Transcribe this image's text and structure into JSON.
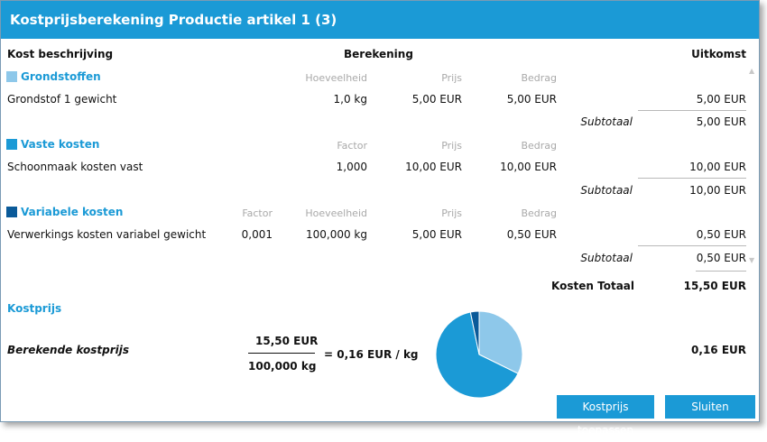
{
  "title": "Kostprijsberekening Productie artikel 1 (3)",
  "headers": {
    "description": "Kost beschrijving",
    "calculation": "Berekening",
    "outcome": "Uitkomst"
  },
  "sections": [
    {
      "name": "Grondstoffen",
      "color": "#8ec8ea",
      "columns": [
        "Hoeveelheid",
        "Prijs",
        "Bedrag"
      ],
      "row": {
        "label": "Grondstof 1 gewicht",
        "values": [
          "1,0 kg",
          "5,00 EUR",
          "5,00 EUR"
        ],
        "result": "5,00 EUR"
      },
      "subtotal_label": "Subtotaal",
      "subtotal": "5,00 EUR"
    },
    {
      "name": "Vaste kosten",
      "color": "#1b9ad6",
      "columns": [
        "Factor",
        "Prijs",
        "Bedrag"
      ],
      "row": {
        "label": "Schoonmaak kosten vast",
        "values": [
          "1,000",
          "10,00 EUR",
          "10,00 EUR"
        ],
        "result": "10,00 EUR"
      },
      "subtotal_label": "Subtotaal",
      "subtotal": "10,00 EUR"
    },
    {
      "name": "Variabele kosten",
      "color": "#0a5a99",
      "columns": [
        "Factor",
        "Hoeveelheid",
        "Prijs",
        "Bedrag"
      ],
      "row": {
        "label": "Verwerkings kosten variabel gewicht",
        "values": [
          "0,001",
          "100,000 kg",
          "5,00 EUR",
          "0,50 EUR"
        ],
        "result": "0,50 EUR"
      },
      "subtotal_label": "Subtotaal",
      "subtotal": "0,50 EUR"
    }
  ],
  "total": {
    "label": "Kosten Totaal",
    "value": "15,50 EUR"
  },
  "kostprijs": {
    "heading": "Kostprijs",
    "label": "Berekende kostprijs",
    "numerator": "15,50 EUR",
    "denominator": "100,000 kg",
    "equals": "= 0,16 EUR / kg",
    "result": "0,16 EUR"
  },
  "chart_data": {
    "type": "pie",
    "categories": [
      "Grondstoffen",
      "Vaste kosten",
      "Variabele kosten"
    ],
    "values": [
      5.0,
      10.0,
      0.5
    ],
    "colors": [
      "#8ec8ea",
      "#1b9ad6",
      "#0a5a99"
    ]
  },
  "buttons": {
    "apply": "Kostprijs toepassen",
    "close": "Sluiten"
  }
}
